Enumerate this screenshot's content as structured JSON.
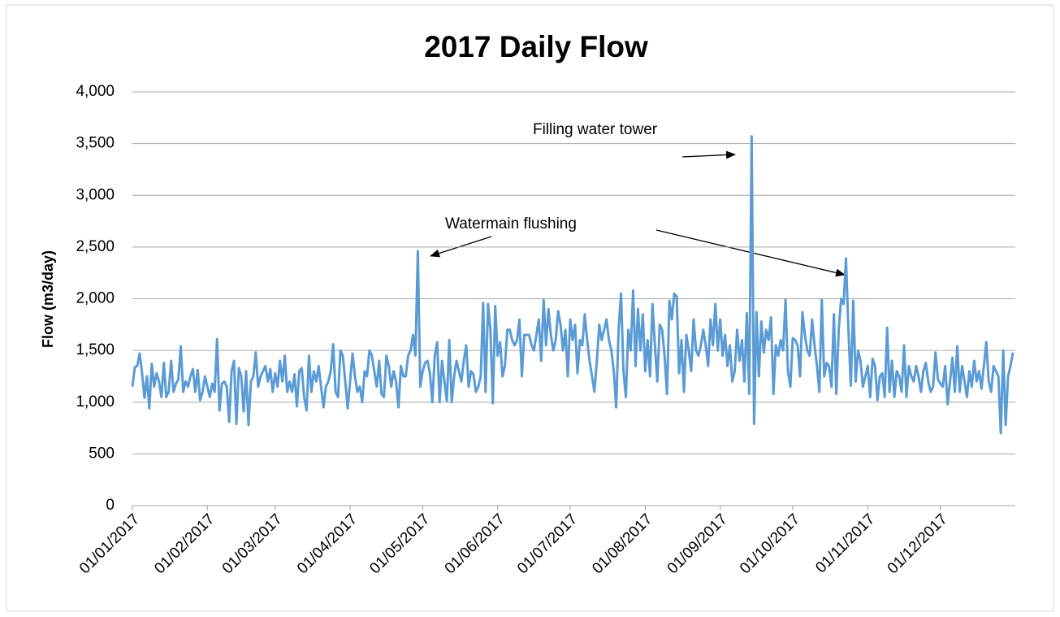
{
  "chart_data": {
    "type": "line",
    "title": "2017 Daily Flow",
    "y_label": "Flow (m3/day)",
    "annotations": [
      "Filling water tower",
      "Watermain flushing"
    ],
    "categories": [
      "01/01/2017",
      null,
      null,
      null,
      null,
      null,
      null,
      null,
      null,
      null,
      null,
      null,
      null,
      null,
      null,
      null,
      null,
      null,
      null,
      null,
      null,
      null,
      null,
      null,
      null,
      null,
      null,
      null,
      null,
      null,
      null,
      "01/02/2017",
      null,
      null,
      null,
      null,
      null,
      null,
      null,
      null,
      null,
      null,
      null,
      null,
      null,
      null,
      null,
      null,
      null,
      null,
      null,
      null,
      null,
      null,
      null,
      null,
      null,
      null,
      null,
      "01/03/2017",
      null,
      null,
      null,
      null,
      null,
      null,
      null,
      null,
      null,
      null,
      null,
      null,
      null,
      null,
      null,
      null,
      null,
      null,
      null,
      null,
      null,
      null,
      null,
      null,
      null,
      null,
      null,
      null,
      null,
      null,
      "01/04/2017",
      null,
      null,
      null,
      null,
      null,
      null,
      null,
      null,
      null,
      null,
      null,
      null,
      null,
      null,
      null,
      null,
      null,
      null,
      null,
      null,
      null,
      null,
      null,
      null,
      null,
      null,
      null,
      null,
      null,
      "01/05/2017",
      null,
      null,
      null,
      null,
      null,
      null,
      null,
      null,
      null,
      null,
      null,
      null,
      null,
      null,
      null,
      null,
      null,
      null,
      null,
      null,
      null,
      null,
      null,
      null,
      null,
      null,
      null,
      null,
      null,
      null,
      "01/06/2017",
      null,
      null,
      null,
      null,
      null,
      null,
      null,
      null,
      null,
      null,
      null,
      null,
      null,
      null,
      null,
      null,
      null,
      null,
      null,
      null,
      null,
      null,
      null,
      null,
      null,
      null,
      null,
      null,
      null,
      "01/07/2017",
      null,
      null,
      null,
      null,
      null,
      null,
      null,
      null,
      null,
      null,
      null,
      null,
      null,
      null,
      null,
      null,
      null,
      null,
      null,
      null,
      null,
      null,
      null,
      null,
      null,
      null,
      null,
      null,
      null,
      null,
      "01/08/2017",
      null,
      null,
      null,
      null,
      null,
      null,
      null,
      null,
      null,
      null,
      null,
      null,
      null,
      null,
      null,
      null,
      null,
      null,
      null,
      null,
      null,
      null,
      null,
      null,
      null,
      null,
      null,
      null,
      null,
      null,
      "01/09/2017",
      null,
      null,
      null,
      null,
      null,
      null,
      null,
      null,
      null,
      null,
      null,
      null,
      null,
      null,
      null,
      null,
      null,
      null,
      null,
      null,
      null,
      null,
      null,
      null,
      null,
      null,
      null,
      null,
      null,
      "01/10/2017",
      null,
      null,
      null,
      null,
      null,
      null,
      null,
      null,
      null,
      null,
      null,
      null,
      null,
      null,
      null,
      null,
      null,
      null,
      null,
      null,
      null,
      null,
      null,
      null,
      null,
      null,
      null,
      null,
      null,
      null,
      "01/11/2017",
      null,
      null,
      null,
      null,
      null,
      null,
      null,
      null,
      null,
      null,
      null,
      null,
      null,
      null,
      null,
      null,
      null,
      null,
      null,
      null,
      null,
      null,
      null,
      null,
      null,
      null,
      null,
      null,
      null,
      "01/12/2017",
      null,
      null,
      null,
      null,
      null,
      null,
      null,
      null,
      null,
      null,
      null,
      null,
      null,
      null,
      null,
      null,
      null,
      null,
      null,
      null,
      null,
      null,
      null,
      null,
      null,
      null,
      null,
      null,
      null,
      null
    ],
    "series": [
      {
        "name": "Flow",
        "color": "#5b9bd5",
        "values": [
          1150,
          1340,
          1350,
          1470,
          1280,
          1040,
          1250,
          940,
          1370,
          1150,
          1280,
          1200,
          1050,
          1380,
          1050,
          1100,
          1400,
          1100,
          1180,
          1220,
          1540,
          1100,
          1200,
          1150,
          1250,
          1320,
          1100,
          1310,
          1020,
          1100,
          1250,
          1150,
          1050,
          1180,
          1100,
          1610,
          920,
          1180,
          1200,
          1150,
          810,
          1300,
          1400,
          790,
          1330,
          1250,
          910,
          1300,
          780,
          1200,
          1250,
          1480,
          1150,
          1250,
          1300,
          1350,
          1200,
          1320,
          1100,
          1280,
          1150,
          1400,
          1200,
          1450,
          1100,
          1200,
          1100,
          1270,
          960,
          1300,
          1330,
          1050,
          920,
          1450,
          1100,
          1300,
          1200,
          1350,
          1150,
          950,
          1150,
          1200,
          1300,
          1560,
          1100,
          1050,
          1500,
          1450,
          1200,
          940,
          1200,
          1470,
          1250,
          1100,
          1150,
          1000,
          1300,
          1250,
          1500,
          1450,
          1300,
          1150,
          1400,
          1080,
          1050,
          1450,
          1350,
          1150,
          1300,
          1200,
          950,
          1350,
          1250,
          1250,
          1450,
          1500,
          1650,
          1450,
          2460,
          1150,
          1300,
          1380,
          1400,
          1280,
          1000,
          1450,
          1580,
          1000,
          1400,
          1200,
          1010,
          1600,
          1000,
          1250,
          1400,
          1300,
          1200,
          1400,
          1550,
          1150,
          1300,
          1270,
          1100,
          1150,
          1250,
          1960,
          1100,
          1950,
          1700,
          990,
          1930,
          1450,
          1580,
          1250,
          1350,
          1700,
          1700,
          1600,
          1550,
          1600,
          1800,
          1250,
          1650,
          1650,
          1650,
          1550,
          1500,
          1650,
          1800,
          1400,
          1990,
          1550,
          1900,
          1650,
          1500,
          1600,
          1880,
          1750,
          1500,
          1700,
          1250,
          1800,
          1600,
          1750,
          1280,
          1600,
          1550,
          1850,
          1600,
          1400,
          1250,
          1100,
          1400,
          1750,
          1600,
          1700,
          1800,
          1600,
          1500,
          1300,
          950,
          1700,
          2050,
          1300,
          1050,
          1700,
          1500,
          2080,
          1350,
          1900,
          1500,
          1850,
          1300,
          1600,
          1250,
          1950,
          1550,
          1200,
          1750,
          1700,
          1450,
          1080,
          1980,
          1800,
          2050,
          2020,
          1280,
          1600,
          1100,
          1650,
          1500,
          1300,
          1800,
          1500,
          1450,
          1550,
          1700,
          1550,
          1350,
          1800,
          1550,
          1950,
          1500,
          1800,
          1450,
          1650,
          1350,
          1550,
          1200,
          1300,
          1700,
          1400,
          1600,
          1200,
          1860,
          1080,
          3570,
          790,
          1870,
          1250,
          1780,
          1480,
          1700,
          1600,
          1820,
          1080,
          1550,
          1450,
          1600,
          1500,
          1990,
          1300,
          1150,
          1620,
          1600,
          1550,
          1250,
          1870,
          1650,
          1500,
          1450,
          1800,
          1550,
          1350,
          1100,
          1990,
          1250,
          1380,
          1350,
          1150,
          1850,
          1080,
          1700,
          2000,
          1950,
          2390,
          1700,
          1160,
          1980,
          1200,
          1500,
          1400,
          1150,
          1250,
          1350,
          1050,
          1420,
          1350,
          1020,
          1250,
          1280,
          1050,
          1720,
          1100,
          1400,
          1050,
          1300,
          1250,
          1100,
          1550,
          1050,
          1350,
          1250,
          1200,
          1350,
          1250,
          1100,
          1300,
          1380,
          1200,
          1100,
          1150,
          1480,
          1220,
          1180,
          1150,
          1350,
          980,
          1200,
          1430,
          1100,
          1540,
          1100,
          1350,
          1200,
          1050,
          1300,
          1150,
          1400,
          1200,
          1300,
          1130,
          1350,
          1580,
          1200,
          1100,
          1350,
          1300,
          1250,
          700,
          1500,
          780,
          1250,
          1350,
          1480
        ]
      }
    ],
    "ylim": [
      0,
      4000
    ],
    "yticks": [
      0,
      500,
      {
        "value": 1000,
        "label": "1,000"
      },
      {
        "value": 1500,
        "label": "1,500"
      },
      {
        "value": 2000,
        "label": "2,000"
      },
      {
        "value": 2500,
        "label": "2,500"
      },
      {
        "value": 3000,
        "label": "3,000"
      },
      {
        "value": 3500,
        "label": "3,500"
      },
      {
        "value": 4000,
        "label": "4,000"
      }
    ],
    "grid": true
  }
}
